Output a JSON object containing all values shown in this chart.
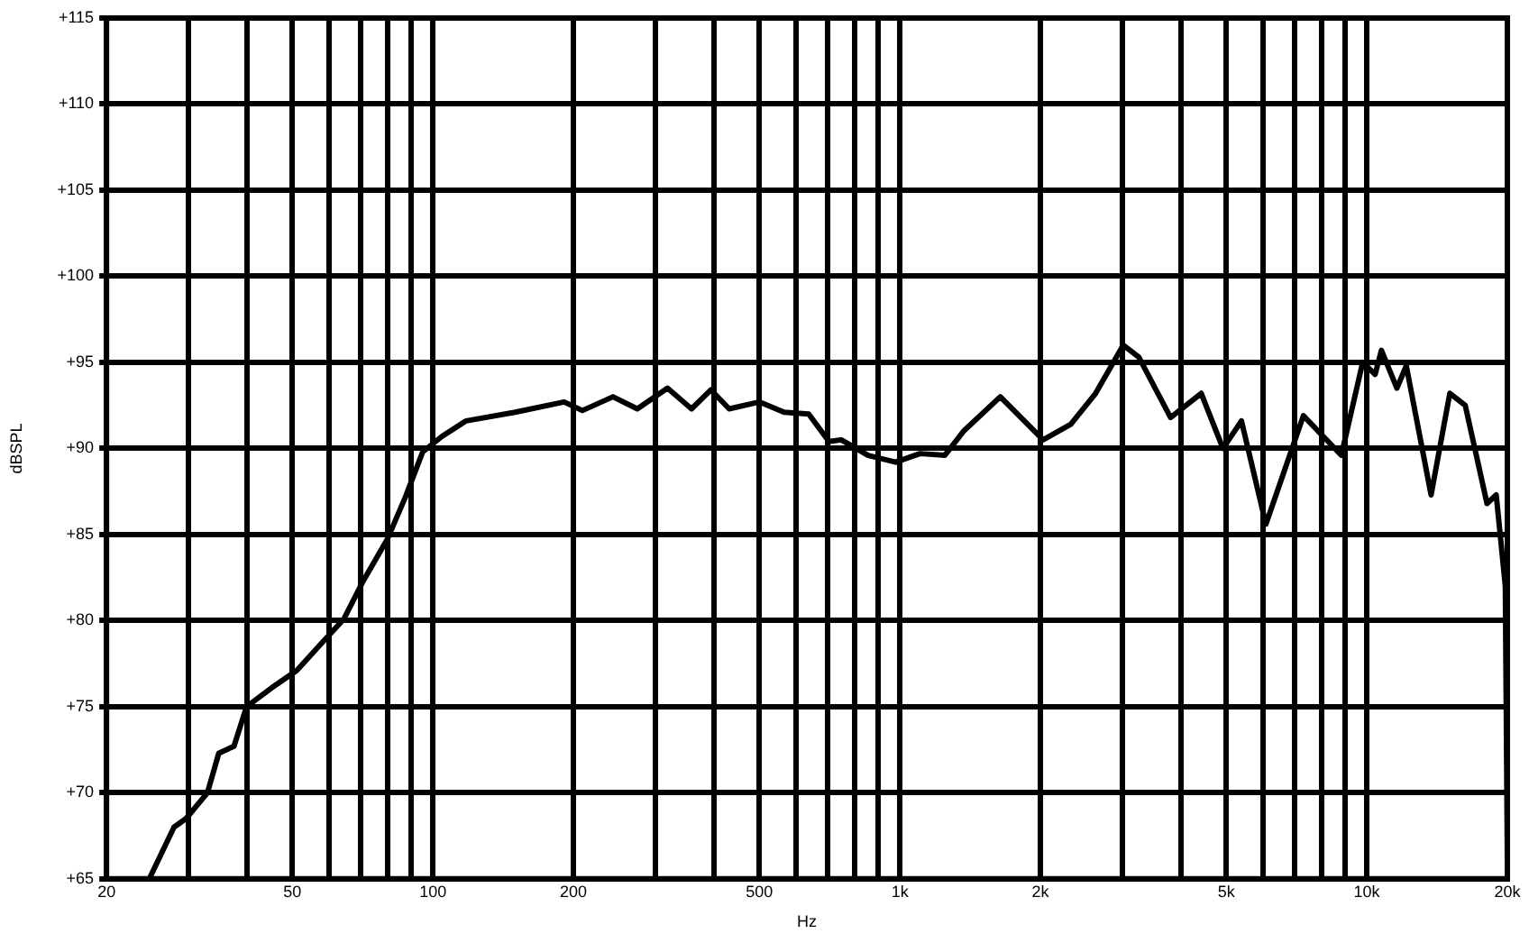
{
  "chart_data": {
    "type": "line",
    "xlabel": "Hz",
    "ylabel": "dBSPL",
    "log": "x",
    "grid": true,
    "legend": false,
    "marker": "none",
    "line_style": "solid",
    "xlim": [
      20,
      20000
    ],
    "ylim": [
      65,
      115
    ],
    "xticks": [
      20,
      {
        "value": 30,
        "label": null
      },
      {
        "value": 40,
        "label": null
      },
      50,
      {
        "value": 60,
        "label": null
      },
      {
        "value": 70,
        "label": null
      },
      {
        "value": 80,
        "label": null
      },
      {
        "value": 90,
        "label": null
      },
      100,
      200,
      {
        "value": 300,
        "label": null
      },
      {
        "value": 400,
        "label": null
      },
      500,
      {
        "value": 600,
        "label": null
      },
      {
        "value": 700,
        "label": null
      },
      {
        "value": 800,
        "label": null
      },
      {
        "value": 900,
        "label": null
      },
      {
        "value": 1000,
        "label": "1k"
      },
      {
        "value": 2000,
        "label": "2k"
      },
      {
        "value": 3000,
        "label": null
      },
      {
        "value": 4000,
        "label": null
      },
      {
        "value": 5000,
        "label": "5k"
      },
      {
        "value": 6000,
        "label": null
      },
      {
        "value": 7000,
        "label": null
      },
      {
        "value": 8000,
        "label": null
      },
      {
        "value": 9000,
        "label": null
      },
      {
        "value": 10000,
        "label": "10k"
      },
      {
        "value": 20000,
        "label": "20k"
      }
    ],
    "yticks": [
      {
        "value": 65,
        "label": "+65"
      },
      {
        "value": 70,
        "label": "+70"
      },
      {
        "value": 75,
        "label": "+75"
      },
      {
        "value": 80,
        "label": "+80"
      },
      {
        "value": 85,
        "label": "+85"
      },
      {
        "value": 90,
        "label": "+90"
      },
      {
        "value": 95,
        "label": "+95"
      },
      {
        "value": 100,
        "label": "+100"
      },
      {
        "value": 105,
        "label": "+105"
      },
      {
        "value": 110,
        "label": "+110"
      },
      {
        "value": 115,
        "label": "+115"
      }
    ],
    "series": [
      {
        "color": "#000000",
        "x": [
          24.7,
          27.9,
          29.6,
          32.9,
          34.8,
          37.5,
          39.9,
          45.2,
          51.1,
          57.4,
          64.5,
          70.6,
          79.8,
          87.4,
          95.1,
          104.6,
          117.8,
          150,
          191,
          209,
          243,
          274,
          318,
          358,
          394,
          431,
          500,
          565,
          638,
          705,
          749,
          855,
          979,
          1105,
          1248,
          1369,
          1641,
          2027,
          2323,
          2626,
          3010,
          3249,
          3800,
          4420,
          4920,
          5390,
          6080,
          7315,
          8820,
          9800,
          10420,
          10750,
          11600,
          12150,
          13730,
          15060,
          16250,
          18090,
          18930,
          19240,
          19800,
          20000
        ],
        "values": [
          65.0,
          68.0,
          68.5,
          70.0,
          72.3,
          72.7,
          75.0,
          76.1,
          77.1,
          78.6,
          80.1,
          82.2,
          84.7,
          87.2,
          89.8,
          90.7,
          91.6,
          92.1,
          92.7,
          92.2,
          93.0,
          92.3,
          93.5,
          92.3,
          93.4,
          92.3,
          92.7,
          92.1,
          92.0,
          90.4,
          90.5,
          89.6,
          89.2,
          89.7,
          89.6,
          91.0,
          93.0,
          90.5,
          91.4,
          93.2,
          96.0,
          95.3,
          91.8,
          93.2,
          90.0,
          91.6,
          85.6,
          91.9,
          89.6,
          95.0,
          94.3,
          95.7,
          93.5,
          94.8,
          87.3,
          93.2,
          92.5,
          86.8,
          87.3,
          85.4,
          82.0,
          66.0
        ]
      }
    ]
  }
}
